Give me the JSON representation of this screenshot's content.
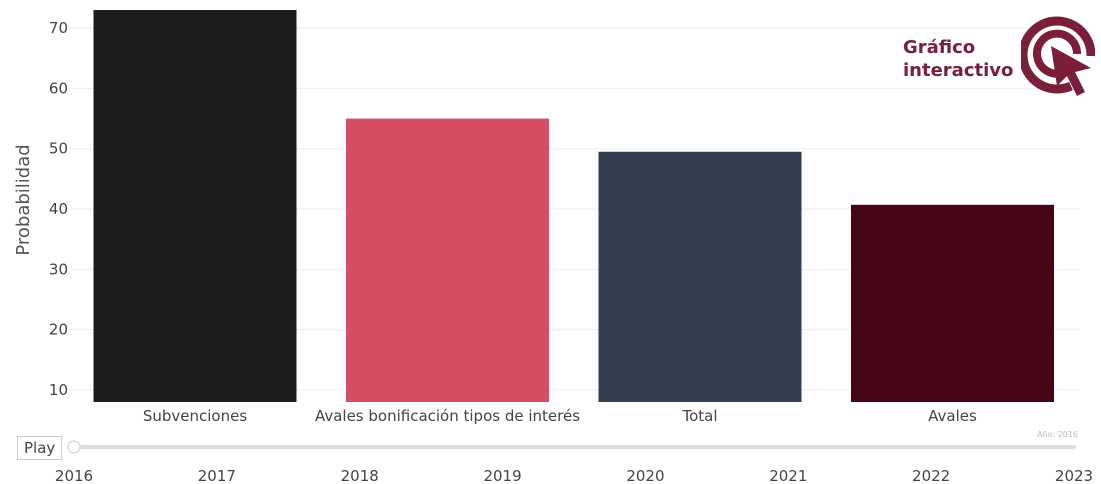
{
  "chart_data": {
    "type": "bar",
    "title": "",
    "xlabel": "",
    "ylabel": "Probabilidad",
    "ylim": [
      8,
      74
    ],
    "yticks": [
      10,
      20,
      30,
      40,
      50,
      60,
      70
    ],
    "grid": true,
    "categories": [
      "Subvenciones",
      "Avales bonificación tipos de interés",
      "Total",
      "Avales"
    ],
    "values": [
      73,
      55,
      49.5,
      40.7
    ],
    "colors": [
      "#1c1c1c",
      "#d44f62",
      "#333e50",
      "#460515"
    ]
  },
  "slider": {
    "play_label": "Play",
    "years": [
      "2016",
      "2017",
      "2018",
      "2019",
      "2020",
      "2021",
      "2022",
      "2023"
    ],
    "current_label": "Año: 2016",
    "position": 0
  },
  "badge": {
    "line1": "Gráfico",
    "line2": "interactivo",
    "color": "#7a1e3a",
    "icon": "click-target-icon"
  }
}
